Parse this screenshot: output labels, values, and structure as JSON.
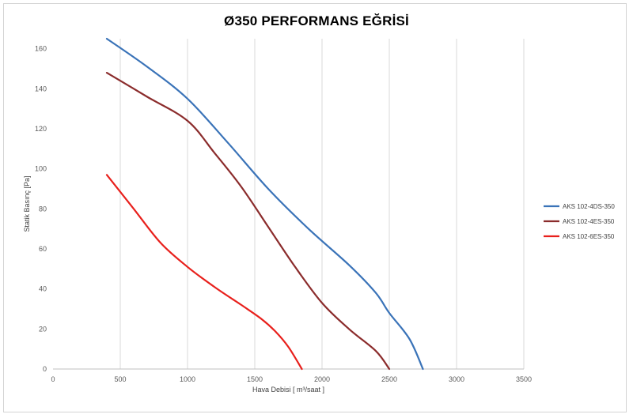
{
  "chart_data": {
    "type": "line",
    "title": "Ø350 PERFORMANS EĞRİSİ",
    "xlabel": "Hava Debisi [ m³/saat ]",
    "ylabel": "Statik Basınç [Pa]",
    "xlim": [
      0,
      3500
    ],
    "ylim": [
      0,
      165
    ],
    "x_ticks": [
      "0",
      "500",
      "1000",
      "1500",
      "2000",
      "2500",
      "3000",
      "3500"
    ],
    "y_ticks": [
      "0",
      "20",
      "40",
      "60",
      "80",
      "100",
      "120",
      "140",
      "160"
    ],
    "grid": "vertical",
    "legend_position": "right",
    "series": [
      {
        "name": "AKS 102-4DS-350",
        "color": "#3a73b8",
        "points": [
          [
            400,
            165
          ],
          [
            700,
            151
          ],
          [
            1000,
            135
          ],
          [
            1300,
            113
          ],
          [
            1600,
            90
          ],
          [
            1900,
            70
          ],
          [
            2200,
            52
          ],
          [
            2400,
            38
          ],
          [
            2500,
            28
          ],
          [
            2650,
            15
          ],
          [
            2750,
            0
          ]
        ]
      },
      {
        "name": "AKS 102-4ES-350",
        "color": "#8b2c2c",
        "points": [
          [
            400,
            148
          ],
          [
            700,
            136
          ],
          [
            1000,
            124
          ],
          [
            1200,
            108
          ],
          [
            1400,
            91
          ],
          [
            1600,
            71
          ],
          [
            1800,
            51
          ],
          [
            2000,
            33
          ],
          [
            2200,
            20
          ],
          [
            2400,
            9
          ],
          [
            2500,
            0
          ]
        ]
      },
      {
        "name": "AKS 102-6ES-350",
        "color": "#e8201c",
        "points": [
          [
            400,
            97
          ],
          [
            600,
            80
          ],
          [
            800,
            63
          ],
          [
            1000,
            51
          ],
          [
            1200,
            41
          ],
          [
            1400,
            32
          ],
          [
            1550,
            25
          ],
          [
            1650,
            19
          ],
          [
            1750,
            11
          ],
          [
            1850,
            0
          ]
        ]
      }
    ]
  }
}
